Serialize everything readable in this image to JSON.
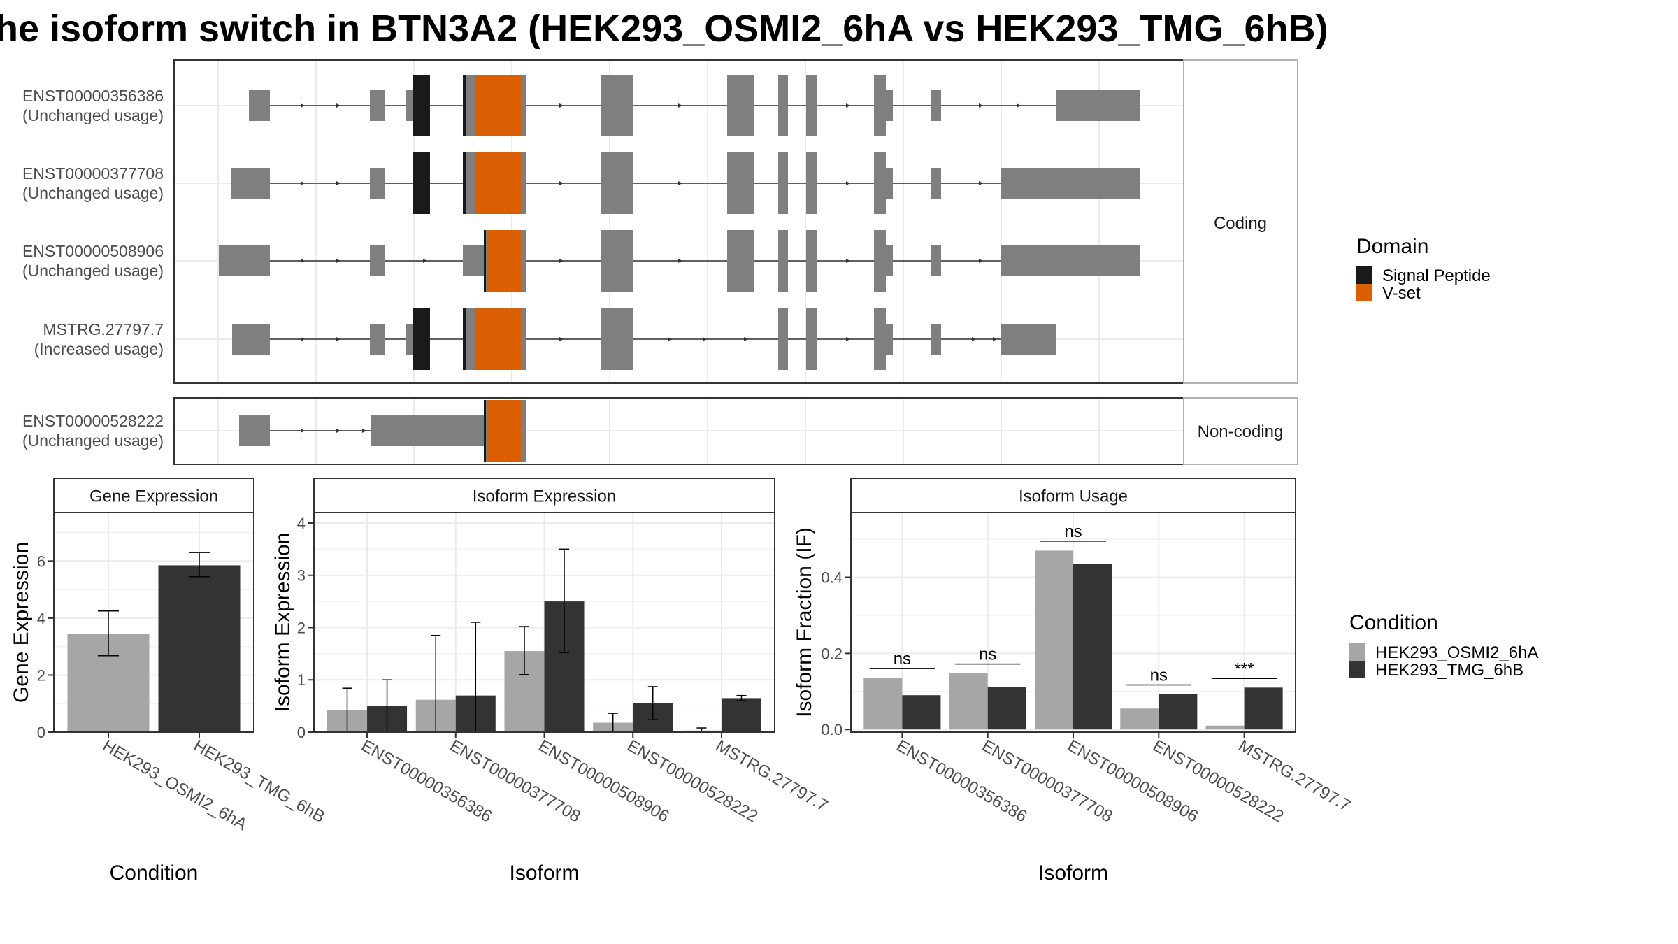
{
  "title": "he isoform switch in BTN3A2 (HEK293_OSMI2_6hA vs HEK293_TMG_6hB)",
  "colors": {
    "exon": "#7f7f7f",
    "signal_peptide": "#1a1a1a",
    "vset": "#d95f02",
    "cond_a": "#a6a6a6",
    "cond_b": "#333333",
    "grid": "#ebebeb",
    "strip_bg": "#ffffff",
    "panel_border": "#333333"
  },
  "structure": {
    "facets": [
      "Coding",
      "Non-coding"
    ],
    "transcripts": [
      {
        "id": "ENST00000356386",
        "usage": "(Unchanged usage)",
        "facet": "Coding"
      },
      {
        "id": "ENST00000377708",
        "usage": "(Unchanged usage)",
        "facet": "Coding"
      },
      {
        "id": "ENST00000508906",
        "usage": "(Unchanged usage)",
        "facet": "Coding"
      },
      {
        "id": "MSTRG.27797.7",
        "usage": "(Increased usage)",
        "facet": "Coding"
      },
      {
        "id": "ENST00000528222",
        "usage": "(Unchanged usage)",
        "facet": "Non-coding"
      }
    ]
  },
  "legends": {
    "domain": {
      "title": "Domain",
      "items": [
        "Signal Peptide",
        "V-set"
      ]
    },
    "condition": {
      "title": "Condition",
      "items": [
        "HEK293_OSMI2_6hA",
        "HEK293_TMG_6hB"
      ]
    }
  },
  "chart_data": [
    {
      "type": "bar",
      "panel": "Gene Expression",
      "xlabel": "Condition",
      "ylabel": "Gene Expression",
      "categories": [
        "HEK293_OSMI2_6hA",
        "HEK293_TMG_6hB"
      ],
      "values": [
        3.45,
        5.85
      ],
      "error_low": [
        2.68,
        5.45
      ],
      "error_high": [
        4.25,
        6.3
      ],
      "ylim": [
        0,
        7.7
      ],
      "yticks": [
        "0",
        "2",
        "4",
        "6"
      ],
      "grid": true
    },
    {
      "type": "bar",
      "panel": "Isoform Expression",
      "xlabel": "Isoform",
      "ylabel": "Isoform Expression",
      "categories": [
        "ENST00000356386",
        "ENST00000377708",
        "ENST00000508906",
        "ENST00000528222",
        "MSTRG.27797.7"
      ],
      "series": [
        {
          "name": "HEK293_OSMI2_6hA",
          "values": [
            0.42,
            0.62,
            1.55,
            0.18,
            0.03
          ],
          "error_low": [
            0.0,
            0.0,
            1.1,
            0.0,
            0.0
          ],
          "error_high": [
            0.84,
            1.85,
            2.02,
            0.36,
            0.08
          ]
        },
        {
          "name": "HEK293_TMG_6hB",
          "values": [
            0.5,
            0.7,
            2.5,
            0.55,
            0.65
          ],
          "error_low": [
            0.0,
            0.0,
            1.52,
            0.24,
            0.6
          ],
          "error_high": [
            1.0,
            2.1,
            3.5,
            0.87,
            0.7
          ]
        }
      ],
      "ylim": [
        0,
        4.2
      ],
      "yticks": [
        "0",
        "1",
        "2",
        "3",
        "4"
      ],
      "grid": true
    },
    {
      "type": "bar",
      "panel": "Isoform Usage",
      "xlabel": "Isoform",
      "ylabel": "Isoform Fraction (IF)",
      "categories": [
        "ENST00000356386",
        "ENST00000377708",
        "ENST00000508906",
        "ENST00000528222",
        "MSTRG.27797.7"
      ],
      "series": [
        {
          "name": "HEK293_OSMI2_6hA",
          "values": [
            0.135,
            0.148,
            0.47,
            0.055,
            0.01
          ]
        },
        {
          "name": "HEK293_TMG_6hB",
          "values": [
            0.09,
            0.112,
            0.435,
            0.094,
            0.11
          ]
        }
      ],
      "significance": [
        "ns",
        "ns",
        "ns",
        "ns",
        "***"
      ],
      "significance_y": [
        0.16,
        0.172,
        0.495,
        0.117,
        0.134
      ],
      "ylim": [
        -0.007,
        0.57
      ],
      "yticks": [
        "0.0",
        "0.2",
        "0.4"
      ],
      "grid": true
    }
  ]
}
